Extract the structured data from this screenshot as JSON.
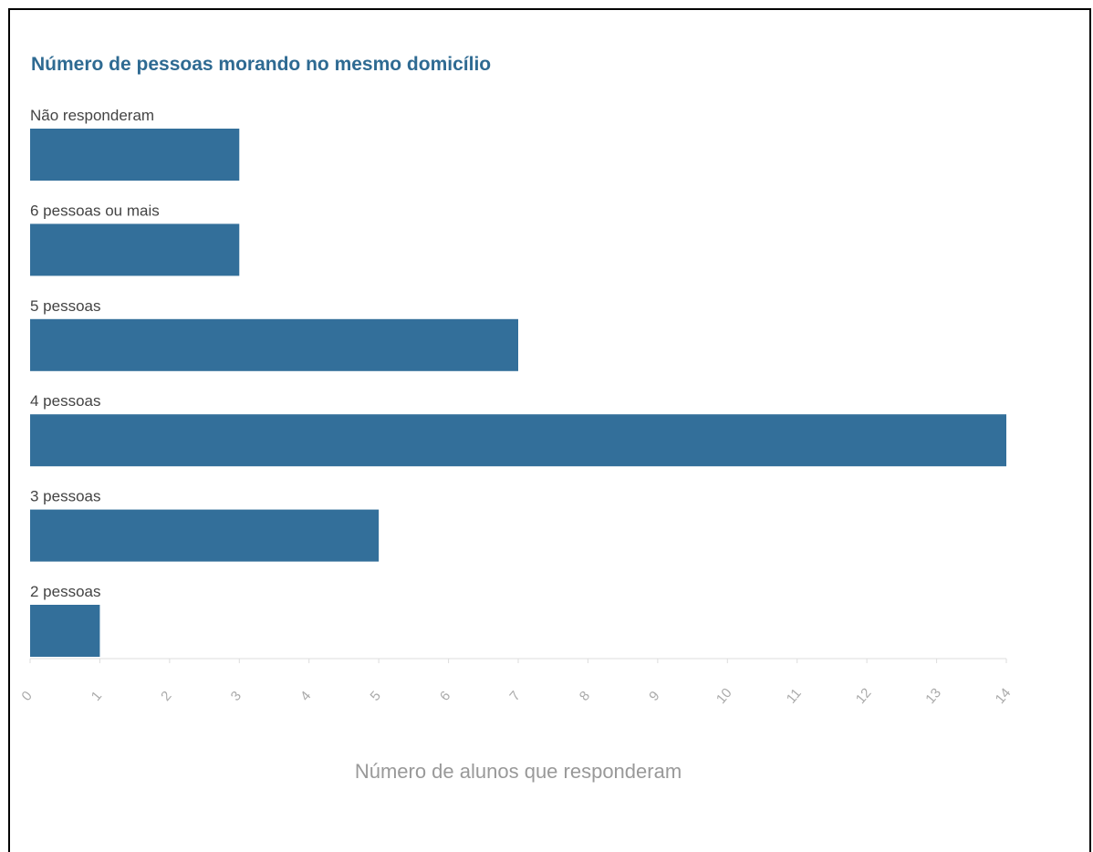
{
  "chart_data": {
    "type": "bar",
    "orientation": "horizontal",
    "title": "Número de pessoas morando no mesmo domicílio",
    "xlabel": "Número de alunos que responderam",
    "ylabel": "",
    "categories": [
      "Não responderam",
      "6 pessoas ou mais",
      "5 pessoas",
      "4 pessoas",
      "3 pessoas",
      "2 pessoas"
    ],
    "values": [
      3,
      3,
      7,
      14,
      5,
      1
    ],
    "xlim": [
      0,
      14
    ],
    "ticks": [
      0,
      1,
      2,
      3,
      4,
      5,
      6,
      7,
      8,
      9,
      10,
      11,
      12,
      13,
      14
    ],
    "grid": false,
    "legend": "none",
    "colors": {
      "bar": "#336f9a",
      "title": "#2e6a92",
      "category_label": "#444444",
      "tick_label": "#aaaaaa",
      "axis_label": "#999999",
      "axis_line": "#dddddd"
    }
  }
}
